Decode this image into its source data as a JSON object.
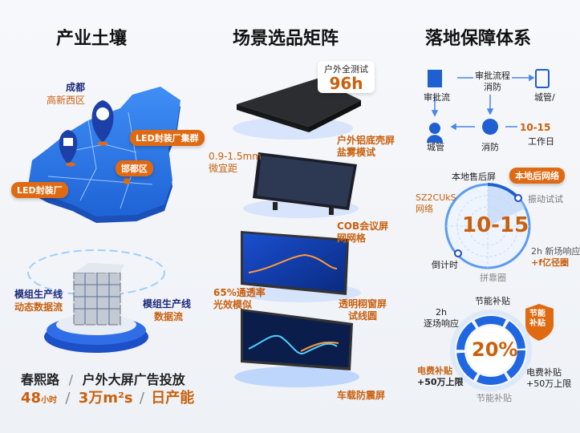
{
  "titles": {
    "left": "产业土壤",
    "middle": "场景选品矩阵",
    "right": "落地保障体系"
  },
  "left": {
    "map": {
      "city": "成都",
      "district": "高新西区",
      "cluster_label": "LED封装厂集群",
      "district2_label": "邯都区",
      "factory_label": "LED封装厂"
    },
    "cube": {
      "left_title": "模组生产线",
      "left_sub": "动态数据流",
      "right_title": "模组生产线",
      "right_sub": "数据流"
    },
    "stats": {
      "row1": [
        "春熙路",
        "/",
        "户外大屏广告投放"
      ],
      "row2_value1": "48",
      "row2_unit1": "小时",
      "sep": "/",
      "row2_value2": "3万m²s",
      "row2_value3": "日产能"
    }
  },
  "middle": {
    "badge": {
      "label": "户外全测试",
      "value": "96h"
    },
    "panel1_label": [
      "户外铝底壳屏",
      "盐雾模试"
    ],
    "panel2_left": [
      "0.9-1.5mm",
      "微宜距"
    ],
    "panel2_right": [
      "COB会议屏",
      "网网格"
    ],
    "panel3_left": [
      "65%通透率",
      "光效模似"
    ],
    "panel3_right": [
      "透明栩窗屏",
      "试线圆"
    ],
    "panel4_right": "车载防震屏"
  },
  "right": {
    "flow": {
      "node1": "审批流",
      "center": [
        "审批流程",
        "消防"
      ],
      "node2": "城管/",
      "node3": "城管",
      "node4": "消防",
      "days_value": "10-15",
      "days_unit": "工作日"
    },
    "radar": {
      "value": "10-15",
      "top": "本地售后屏",
      "badge": "本地后网络",
      "right_top": "振动试试",
      "left_top": [
        "SZ2CUkS",
        "网络"
      ],
      "right_bottom": [
        "2h 新场响应",
        "+f亿径圈"
      ],
      "left_bottom": "倒计时",
      "bottom": "拼靠圈"
    },
    "donut": {
      "value": "20%",
      "top": "节能补贴",
      "shield": [
        "节能",
        "补贴"
      ],
      "left_top": [
        "2h",
        "逐场响应"
      ],
      "left_bottom": [
        "电费补贴",
        "+50万上限"
      ],
      "right_bottom": [
        "电费补贴",
        "+50万上限"
      ],
      "bottom": "节能补贴"
    },
    "colors": {
      "accent_blue": "#1f6fe0",
      "accent_orange": "#e06a12",
      "navy": "#1d2a7a"
    }
  }
}
